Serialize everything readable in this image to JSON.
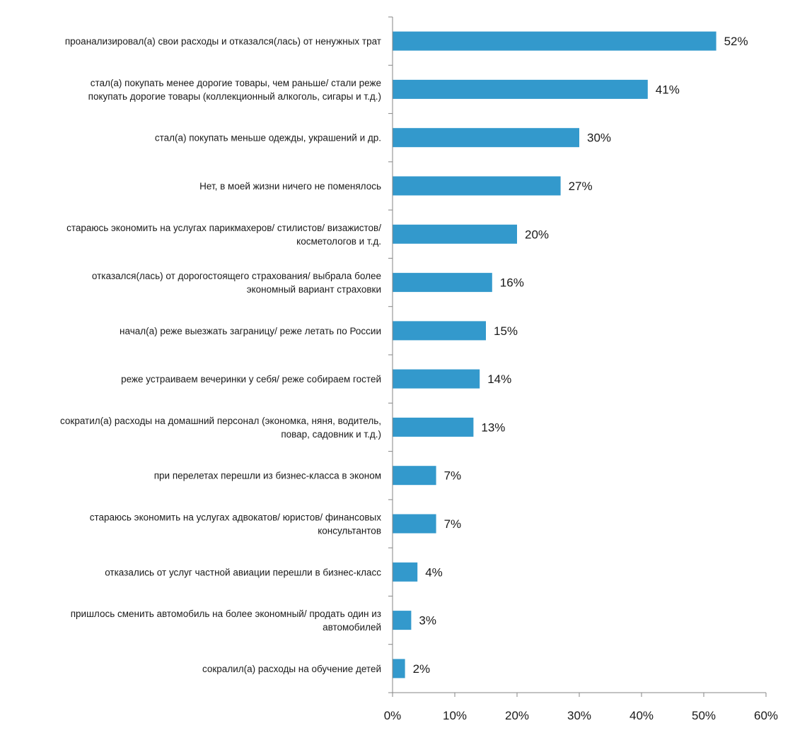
{
  "chart_data": {
    "type": "bar",
    "orientation": "horizontal",
    "title": "",
    "xlabel": "",
    "ylabel": "",
    "xlim": [
      0,
      60
    ],
    "x_ticks": [
      0,
      10,
      20,
      30,
      40,
      50,
      60
    ],
    "x_tick_labels": [
      "0%",
      "10%",
      "20%",
      "30%",
      "40%",
      "50%",
      "60%"
    ],
    "grid": false,
    "legend": "none",
    "bar_color": "#3399cc",
    "categories": [
      [
        "проанализировал(а) свои расходы и отказался(лась) от ненужных трат"
      ],
      [
        "стал(а) покупать менее дорогие товары, чем раньше/ стали реже",
        "покупать дорогие товары (коллекционный алкоголь, сигары и т.д.)"
      ],
      [
        "стал(а) покупать меньше одежды, украшений и др."
      ],
      [
        "Нет, в моей жизни ничего не поменялось"
      ],
      [
        "стараюсь экономить на услугах парикмахеров/ стилистов/ визажистов/",
        "косметологов и т.д."
      ],
      [
        "отказался(лась) от дорогостоящего страхования/ выбрала более",
        "экономный вариант страховки"
      ],
      [
        "начал(а) реже выезжать заграницу/ реже летать по России"
      ],
      [
        "реже устраиваем вечеринки у себя/ реже собираем гостей"
      ],
      [
        "сократил(а) расходы на домашний персонал (экономка, няня, водитель,",
        "повар, садовник и т.д.)"
      ],
      [
        "при перелетах перешли из бизнес-класса в эконом"
      ],
      [
        "стараюсь экономить на услугах адвокатов/ юристов/ финансовых",
        "консультантов"
      ],
      [
        "отказались от услуг частной авиации перешли в бизнес-класс"
      ],
      [
        "пришлось сменить автомобиль на более экономный/ продать один из",
        "автомобилей"
      ],
      [
        "сокралил(а) расходы на обучение детей"
      ]
    ],
    "values": [
      52,
      41,
      30,
      27,
      20,
      16,
      15,
      14,
      13,
      7,
      7,
      4,
      3,
      2
    ],
    "value_labels": [
      "52%",
      "41%",
      "30%",
      "27%",
      "20%",
      "16%",
      "15%",
      "14%",
      "13%",
      "7%",
      "7%",
      "4%",
      "3%",
      "2%"
    ]
  }
}
